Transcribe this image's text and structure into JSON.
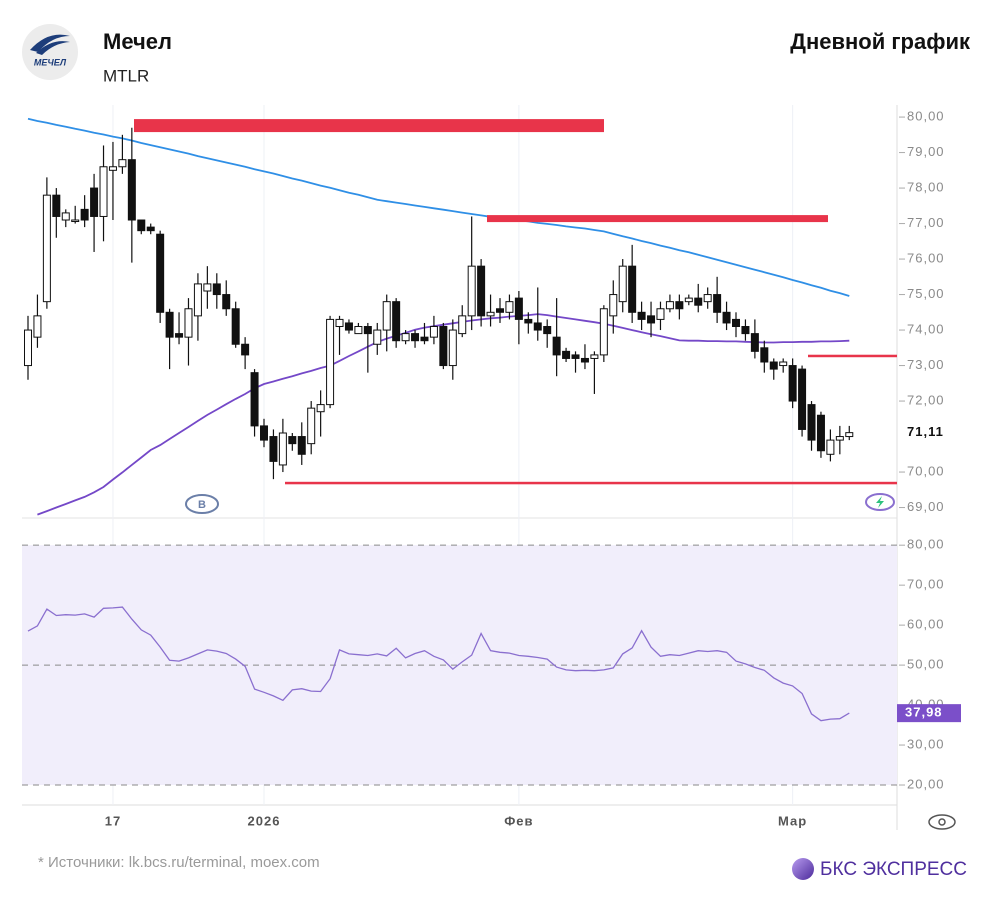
{
  "header": {
    "title": "Мечел",
    "ticker": "MTLR",
    "logo_text": "МЕЧЕЛ",
    "chart_label": "Дневной график"
  },
  "chart_data": [
    {
      "type": "candlestick",
      "categories": [
        null,
        null,
        null,
        null,
        null,
        null,
        null,
        null,
        null,
        "17",
        null,
        null,
        null,
        null,
        null,
        null,
        null,
        null,
        null,
        null,
        null,
        null,
        null,
        null,
        null,
        "2026",
        null,
        null,
        null,
        null,
        null,
        null,
        null,
        null,
        null,
        null,
        null,
        null,
        null,
        null,
        null,
        null,
        null,
        null,
        null,
        null,
        null,
        null,
        null,
        null,
        null,
        null,
        "Фев",
        null,
        null,
        null,
        null,
        null,
        null,
        null,
        null,
        null,
        null,
        null,
        null,
        null,
        null,
        null,
        null,
        null,
        null,
        null,
        null,
        null,
        null,
        null,
        null,
        null,
        null,
        null,
        null,
        "Мар",
        null,
        null,
        null,
        null,
        null,
        null
      ],
      "open": [
        73.0,
        73.8,
        74.8,
        77.8,
        77.1,
        77.1,
        77.4,
        78.0,
        77.2,
        78.5,
        78.6,
        78.8,
        77.1,
        76.9,
        76.7,
        74.5,
        73.9,
        73.8,
        74.4,
        75.1,
        75.3,
        75.0,
        74.6,
        73.6,
        72.8,
        71.3,
        71.0,
        70.2,
        71.0,
        71.0,
        70.8,
        71.7,
        71.9,
        74.1,
        74.2,
        73.9,
        74.1,
        73.6,
        74.0,
        74.8,
        73.7,
        73.9,
        73.8,
        73.8,
        74.1,
        73.0,
        73.9,
        74.4,
        75.8,
        74.4,
        74.6,
        74.5,
        74.9,
        74.3,
        74.2,
        74.1,
        73.8,
        73.4,
        73.3,
        73.2,
        73.2,
        73.3,
        74.4,
        74.8,
        75.8,
        74.5,
        74.4,
        74.3,
        74.6,
        74.8,
        74.8,
        74.9,
        74.8,
        75.0,
        74.5,
        74.3,
        74.1,
        73.9,
        73.5,
        73.1,
        73.0,
        73.0,
        72.9,
        71.9,
        71.6,
        70.5,
        70.9,
        71.0
      ],
      "high": [
        74.4,
        75.0,
        78.3,
        78.0,
        77.4,
        77.5,
        77.8,
        78.4,
        79.2,
        79.3,
        79.5,
        79.7,
        77.1,
        77.0,
        76.8,
        74.6,
        74.5,
        74.9,
        75.6,
        75.8,
        75.6,
        75.4,
        74.8,
        73.8,
        72.9,
        71.5,
        71.2,
        71.5,
        71.1,
        71.4,
        72.0,
        72.3,
        74.4,
        74.4,
        74.3,
        74.2,
        74.2,
        74.2,
        75.0,
        74.9,
        74.0,
        74.0,
        74.2,
        74.4,
        74.2,
        74.3,
        74.7,
        77.2,
        76.0,
        75.0,
        74.9,
        75.0,
        75.1,
        74.5,
        75.2,
        74.3,
        74.9,
        73.5,
        73.4,
        73.6,
        73.4,
        74.7,
        75.4,
        76.0,
        76.4,
        74.8,
        74.8,
        74.8,
        75.0,
        75.0,
        75.0,
        75.3,
        75.2,
        75.5,
        74.8,
        74.5,
        74.3,
        74.3,
        73.7,
        73.2,
        73.2,
        73.2,
        73.0,
        72.0,
        71.7,
        71.2,
        71.3,
        71.3
      ],
      "low": [
        72.6,
        73.5,
        74.6,
        76.6,
        76.9,
        77.0,
        76.9,
        76.2,
        76.5,
        77.1,
        78.4,
        75.9,
        76.7,
        76.7,
        74.2,
        72.9,
        73.6,
        73.0,
        73.7,
        74.6,
        74.6,
        74.4,
        73.5,
        72.9,
        71.0,
        70.7,
        69.8,
        70.0,
        70.6,
        70.2,
        70.5,
        71.0,
        71.8,
        73.3,
        73.9,
        73.9,
        72.8,
        73.3,
        73.4,
        73.5,
        73.6,
        73.5,
        73.6,
        73.6,
        72.9,
        72.6,
        73.8,
        74.0,
        74.1,
        74.1,
        74.2,
        74.3,
        73.6,
        73.9,
        73.7,
        73.5,
        72.7,
        73.1,
        72.8,
        72.9,
        72.2,
        73.1,
        73.9,
        74.5,
        74.2,
        74.0,
        73.8,
        74.0,
        74.5,
        74.3,
        74.7,
        74.5,
        74.6,
        74.2,
        74.0,
        73.8,
        73.7,
        73.2,
        72.8,
        72.6,
        72.8,
        71.8,
        71.0,
        70.6,
        70.4,
        70.3,
        70.5,
        70.9
      ],
      "close": [
        74.0,
        74.4,
        77.8,
        77.2,
        77.3,
        77.1,
        77.1,
        77.2,
        78.6,
        78.6,
        78.8,
        77.1,
        76.8,
        76.8,
        74.5,
        73.8,
        73.8,
        74.6,
        75.3,
        75.3,
        75.0,
        74.6,
        73.6,
        73.3,
        71.3,
        70.9,
        70.3,
        71.1,
        70.8,
        70.5,
        71.8,
        71.9,
        74.3,
        74.3,
        74.0,
        74.1,
        73.9,
        74.0,
        74.8,
        73.7,
        73.9,
        73.7,
        73.7,
        74.1,
        73.0,
        74.0,
        74.4,
        75.8,
        74.4,
        74.5,
        74.5,
        74.8,
        74.3,
        74.2,
        74.0,
        73.9,
        73.3,
        73.2,
        73.2,
        73.1,
        73.3,
        74.6,
        75.0,
        75.8,
        74.5,
        74.3,
        74.2,
        74.6,
        74.8,
        74.6,
        74.9,
        74.7,
        75.0,
        74.5,
        74.2,
        74.1,
        73.9,
        73.4,
        73.1,
        72.9,
        73.1,
        72.0,
        71.2,
        70.9,
        70.6,
        70.9,
        71.0,
        71.11
      ],
      "up_color": "#ffffff",
      "down_color": "#111111",
      "series": [
        {
          "color": "#2f8fe6",
          "values": [
            79.95,
            79.89,
            79.84,
            79.78,
            79.73,
            79.67,
            79.62,
            79.56,
            79.51,
            79.45,
            79.4,
            79.34,
            79.27,
            79.21,
            79.15,
            79.09,
            79.03,
            78.97,
            78.9,
            78.84,
            78.78,
            78.72,
            78.66,
            78.6,
            78.53,
            78.47,
            78.41,
            78.34,
            78.27,
            78.21,
            78.14,
            78.07,
            78.01,
            77.94,
            77.87,
            77.81,
            77.74,
            77.67,
            77.63,
            77.59,
            77.55,
            77.51,
            77.47,
            77.43,
            77.39,
            77.35,
            77.31,
            77.27,
            77.23,
            77.19,
            77.16,
            77.12,
            77.09,
            77.06,
            77.02,
            76.99,
            76.96,
            76.92,
            76.89,
            76.86,
            76.82,
            76.78,
            76.71,
            76.64,
            76.58,
            76.51,
            76.45,
            76.38,
            76.32,
            76.25,
            76.19,
            76.12,
            76.05,
            75.98,
            75.91,
            75.84,
            75.77,
            75.7,
            75.63,
            75.56,
            75.49,
            75.41,
            75.34,
            75.26,
            75.19,
            75.11,
            75.04,
            74.96
          ]
        },
        {
          "color": "#7448c8",
          "values": [
            null,
            68.8,
            68.9,
            69.0,
            69.1,
            69.2,
            69.3,
            69.43,
            69.58,
            69.79,
            69.99,
            70.2,
            70.41,
            70.62,
            70.76,
            70.93,
            71.1,
            71.27,
            71.44,
            71.61,
            71.76,
            71.91,
            72.06,
            72.2,
            72.36,
            72.48,
            72.55,
            72.63,
            72.7,
            72.78,
            72.85,
            72.93,
            73.0,
            73.13,
            73.27,
            73.4,
            73.53,
            73.66,
            73.76,
            73.84,
            73.92,
            74.01,
            74.07,
            74.11,
            74.15,
            74.19,
            74.23,
            74.27,
            74.3,
            74.33,
            74.35,
            74.38,
            74.4,
            74.42,
            74.45,
            74.42,
            74.38,
            74.34,
            74.3,
            74.26,
            74.22,
            74.18,
            74.12,
            74.06,
            74.0,
            73.94,
            73.88,
            73.83,
            73.77,
            73.71,
            73.7,
            73.7,
            73.69,
            73.69,
            73.68,
            73.68,
            73.67,
            73.66,
            73.65,
            73.65,
            73.66,
            73.66,
            73.67,
            73.67,
            73.68,
            73.68,
            73.69,
            73.7
          ]
        }
      ],
      "levels": [
        79.76,
        77.14,
        73.27,
        69.69
      ],
      "level_color": "#e8344a",
      "last_price": {
        "value": 71.11,
        "label": "71,11"
      },
      "event_marker": "B",
      "ylim": [
        68.79,
        80.34
      ],
      "yticks": [
        {
          "value": 69,
          "label": "69,00"
        },
        {
          "value": 70,
          "label": "70,00"
        },
        {
          "value": 71,
          "label": "71,00"
        },
        {
          "value": 72,
          "label": "72,00"
        },
        {
          "value": 73,
          "label": "73,00"
        },
        {
          "value": 74,
          "label": "74,00"
        },
        {
          "value": 75,
          "label": "75,00"
        },
        {
          "value": 76,
          "label": "76,00"
        },
        {
          "value": 77,
          "label": "77,00"
        },
        {
          "value": 78,
          "label": "78,00"
        },
        {
          "value": 79,
          "label": "79,00"
        },
        {
          "value": 80,
          "label": "80,00"
        }
      ]
    },
    {
      "type": "line",
      "series": [
        {
          "color": "#8a6fcf",
          "values": [
            58.5,
            59.8,
            64.0,
            62.4,
            62.6,
            62.5,
            62.8,
            62.0,
            64.2,
            64.3,
            64.5,
            61.5,
            58.8,
            57.5,
            54.5,
            51.2,
            51.0,
            51.8,
            52.8,
            53.8,
            53.5,
            52.9,
            51.5,
            49.7,
            44.0,
            43.2,
            42.3,
            41.2,
            43.8,
            44.1,
            43.5,
            43.4,
            46.6,
            53.8,
            52.8,
            52.6,
            52.4,
            52.8,
            52.3,
            54.2,
            51.8,
            52.9,
            53.6,
            52.2,
            51.3,
            49.0,
            50.8,
            52.5,
            57.9,
            53.6,
            53.2,
            53.0,
            52.4,
            52.2,
            51.9,
            51.5,
            49.5,
            48.8,
            48.6,
            48.7,
            48.6,
            48.8,
            49.3,
            52.8,
            54.3,
            58.6,
            54.5,
            52.2,
            52.6,
            52.4,
            53.0,
            53.6,
            53.4,
            53.6,
            53.2,
            51.0,
            50.3,
            49.4,
            48.7,
            46.8,
            45.5,
            44.8,
            42.9,
            37.8,
            36.1,
            36.5,
            36.6,
            37.98
          ]
        }
      ],
      "last_value": {
        "value": 37.98,
        "label": "37,98"
      },
      "band": [
        20,
        80
      ],
      "band_color": "#f1eefb",
      "dashed_lines": [
        80,
        50,
        20
      ],
      "ylim": [
        15,
        86.3
      ],
      "yticks": [
        {
          "value": 20,
          "label": "20,00"
        },
        {
          "value": 30,
          "label": "30,00"
        },
        {
          "value": 40,
          "label": "40,00"
        },
        {
          "value": 50,
          "label": "50,00"
        },
        {
          "value": 60,
          "label": "60,00"
        },
        {
          "value": 70,
          "label": "70,00"
        },
        {
          "value": 80,
          "label": "80,00"
        }
      ]
    }
  ],
  "footer": {
    "source": "* Источники: lk.bcs.ru/terminal, moex.com",
    "brand": "БКС ЭКСПРЕСС"
  }
}
